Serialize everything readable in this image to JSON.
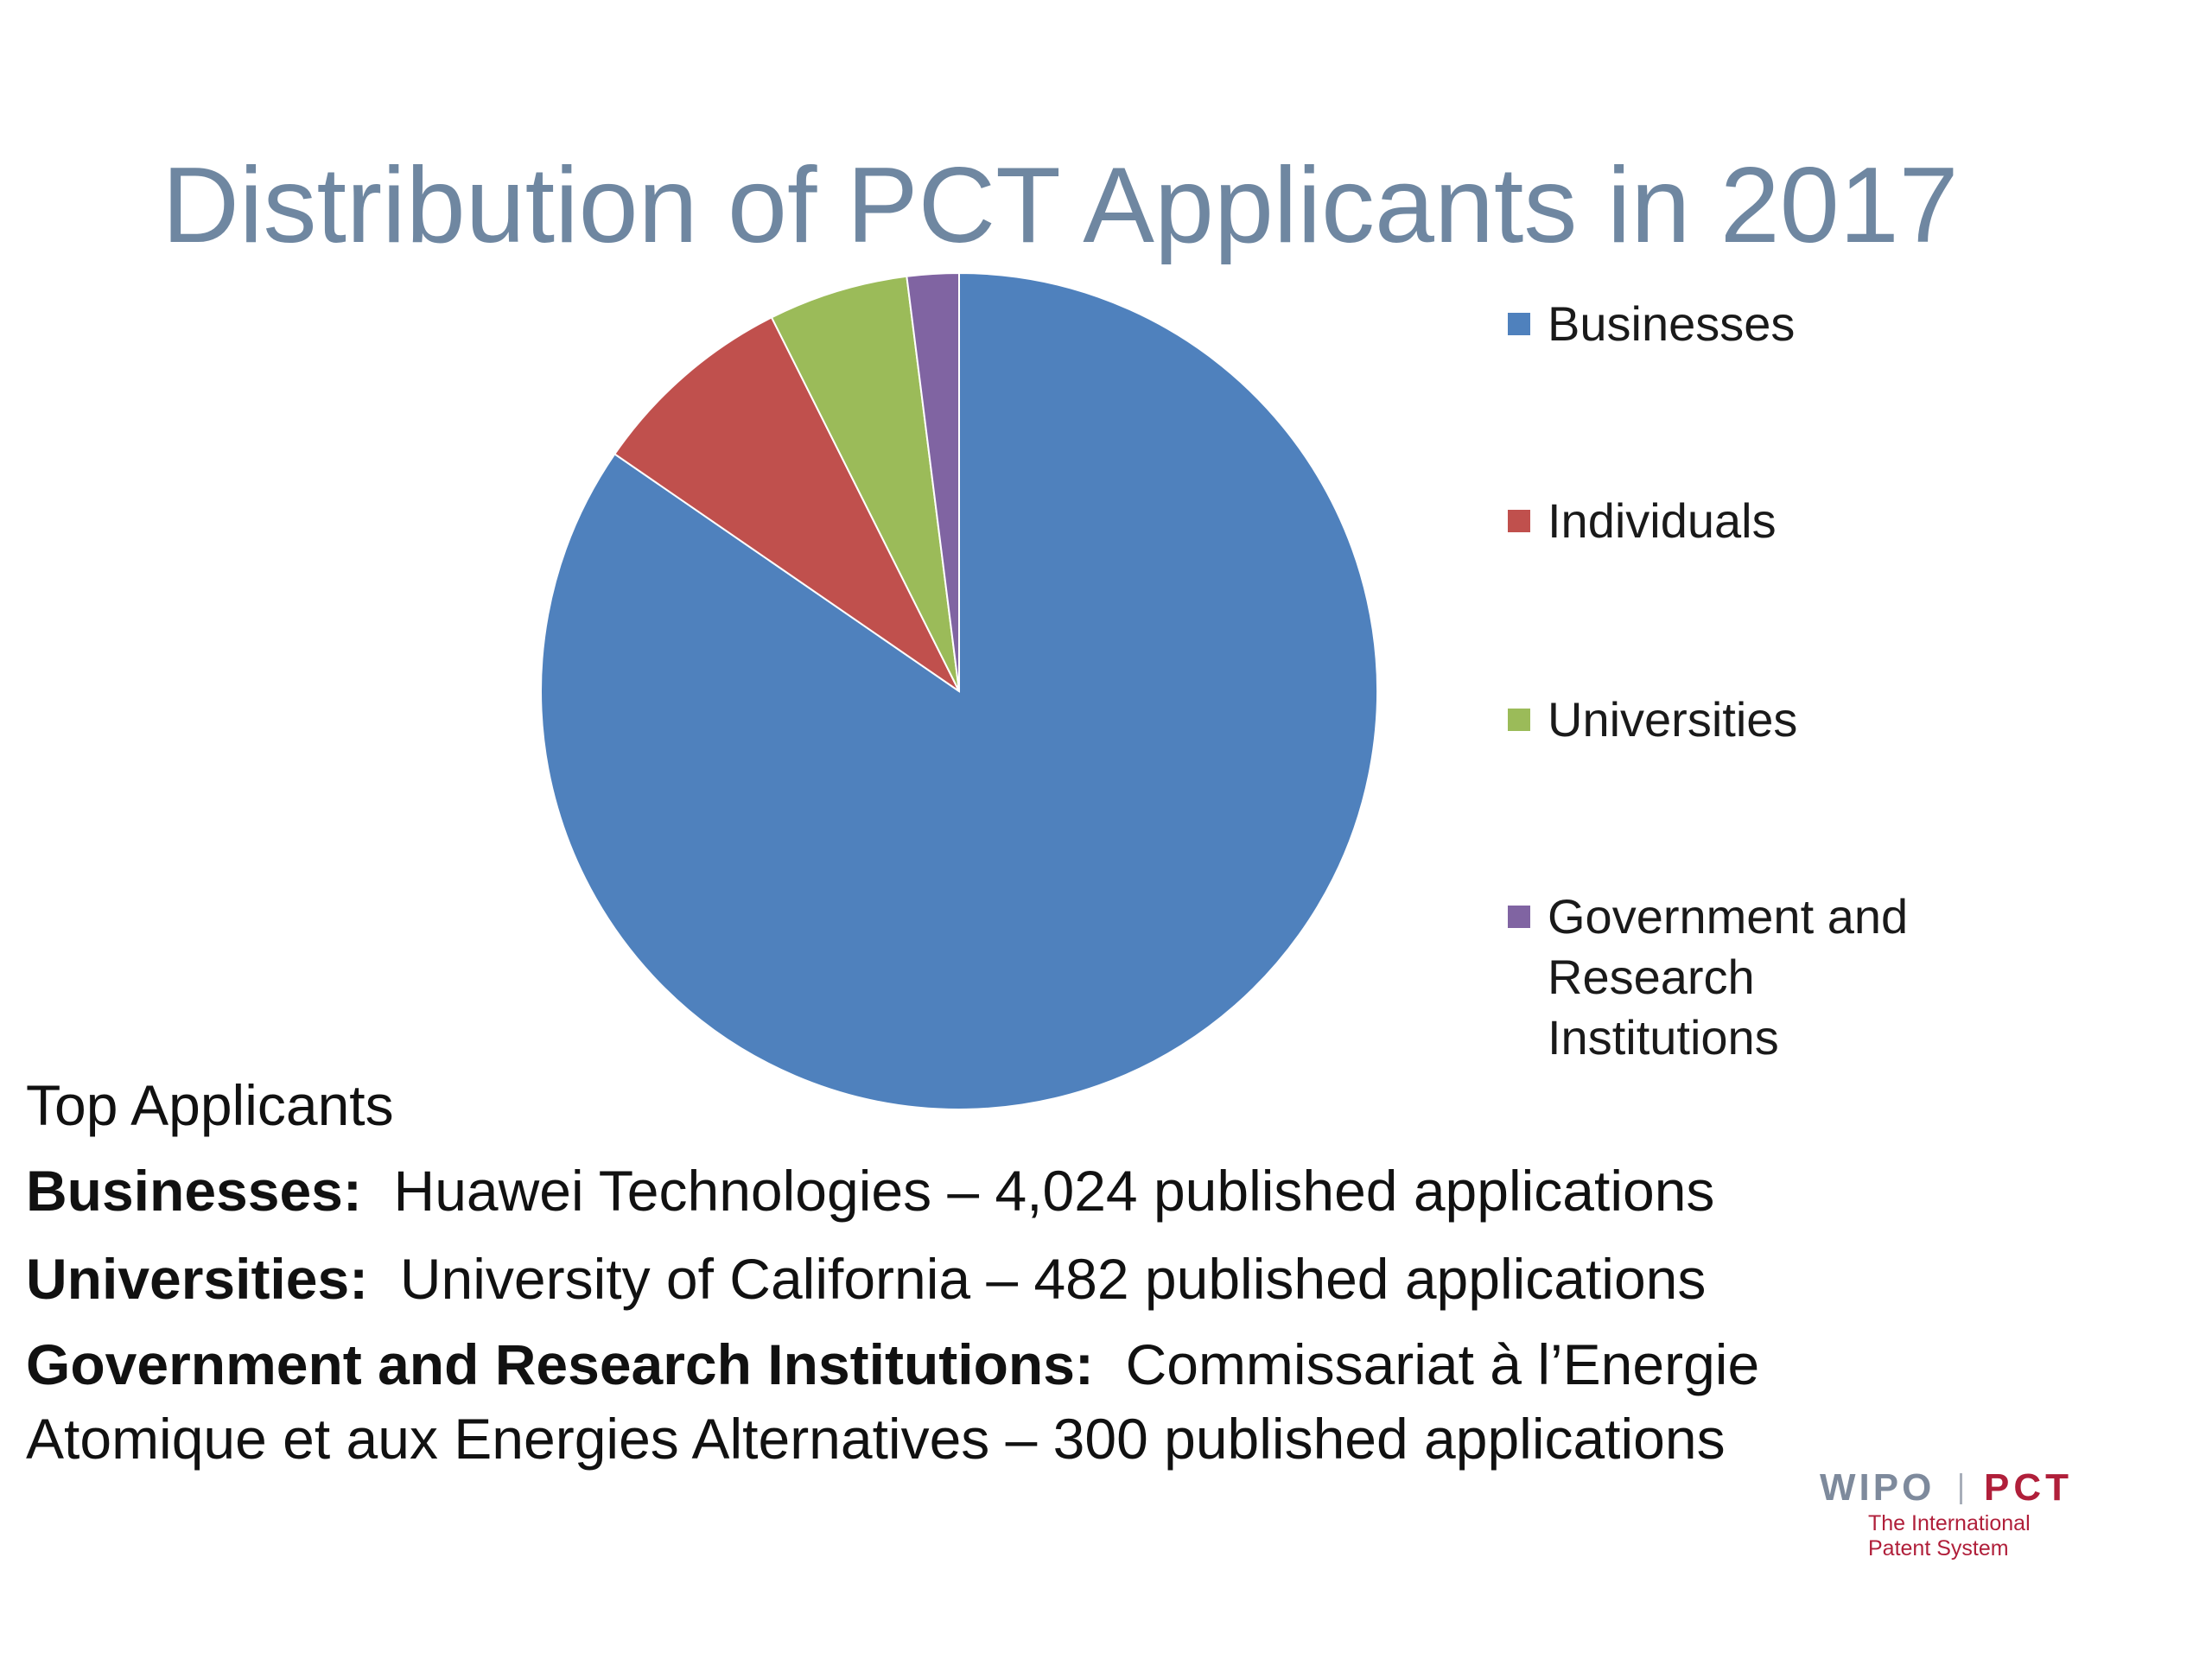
{
  "slide": {
    "title": "Distribution of PCT Applicants in 2017"
  },
  "chart_data": {
    "type": "pie",
    "title": "Distribution of PCT Applicants in 2017",
    "categories": [
      "Businesses",
      "Individuals",
      "Universities",
      "Government and Research Institutions"
    ],
    "values": [
      84.6,
      8.0,
      5.4,
      2.0
    ],
    "colors": [
      "#4f81bd",
      "#c0504d",
      "#9bbb59",
      "#8064a2"
    ],
    "legend_position": "right",
    "legend_labels": [
      [
        "Businesses"
      ],
      [
        "Individuals"
      ],
      [
        "Universities"
      ],
      [
        "Government and",
        "Research",
        "Institutions"
      ]
    ]
  },
  "top_applicants": {
    "heading": "Top Applicants",
    "items": [
      {
        "category": "Businesses:",
        "detail": "Huawei Technologies – 4,024 published applications"
      },
      {
        "category": "Universities:",
        "detail": "University of California – 482 published applications"
      },
      {
        "category": "Government and Research Institutions:",
        "detail": "Commissariat à l’Energie Atomique et aux Energies Alternatives – 300 published applications"
      }
    ]
  },
  "logo": {
    "wipo": "WIPO",
    "pct": "PCT",
    "subtitle_line1": "The International",
    "subtitle_line2": "Patent System"
  }
}
